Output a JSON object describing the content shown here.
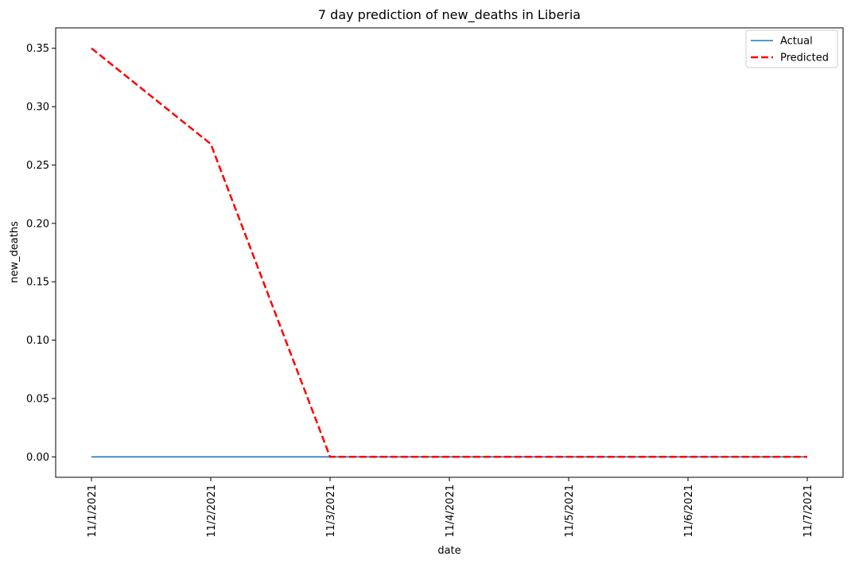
{
  "chart_data": {
    "type": "line",
    "title": "7 day prediction of new_deaths in Liberia",
    "xlabel": "date",
    "ylabel": "new_deaths",
    "categories": [
      "11/1/2021",
      "11/2/2021",
      "11/3/2021",
      "11/4/2021",
      "11/5/2021",
      "11/6/2021",
      "11/7/2021"
    ],
    "series": [
      {
        "name": "Actual",
        "values": [
          0,
          0,
          0,
          0,
          0,
          0,
          0
        ],
        "color": "#1f77b4",
        "style": "solid"
      },
      {
        "name": "Predicted",
        "values": [
          0.35,
          0.268,
          0,
          0,
          0,
          0,
          0
        ],
        "color": "#ff0000",
        "style": "dashed"
      }
    ],
    "ylim": [
      -0.0175,
      0.3675
    ],
    "yticks": [
      "0.00",
      "0.05",
      "0.10",
      "0.15",
      "0.20",
      "0.25",
      "0.30",
      "0.35"
    ],
    "grid": false,
    "legend": "top-right"
  }
}
